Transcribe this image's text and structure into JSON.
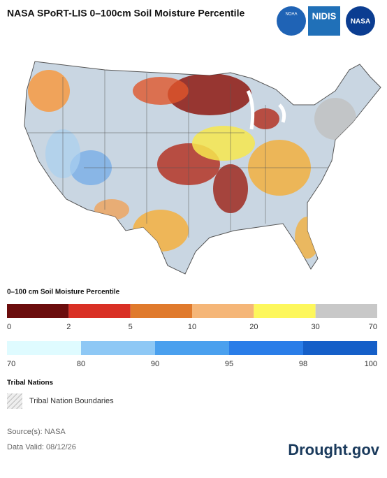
{
  "header": {
    "title": "NASA SPoRT-LIS 0–100cm Soil Moisture Percentile",
    "logos": [
      "NOAA",
      "NIDIS",
      "NASA"
    ]
  },
  "legend": {
    "title": "0–100 cm Soil Moisture Percentile",
    "dry": {
      "colors": [
        "#6b0d0d",
        "#d93025",
        "#e07a2c",
        "#f5b678",
        "#fdf75c",
        "#c8c8c8"
      ],
      "ticks": [
        0,
        2,
        5,
        10,
        20,
        30,
        70
      ]
    },
    "wet": {
      "colors": [
        "#dffbff",
        "#8ec8f5",
        "#4aa0ee",
        "#2a7de8",
        "#155fc8"
      ],
      "ticks": [
        70,
        80,
        90,
        95,
        98,
        100
      ]
    }
  },
  "tribal": {
    "title": "Tribal Nations",
    "label": "Tribal Nation Boundaries"
  },
  "footer": {
    "source": "Source(s): NASA",
    "date": "Data Valid: 08/12/26",
    "brand": "Drought.gov"
  }
}
